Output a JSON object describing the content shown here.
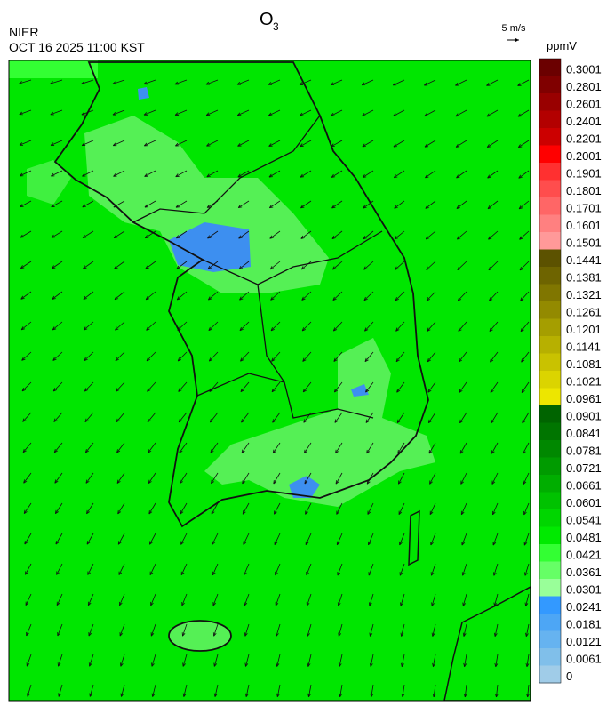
{
  "header": {
    "title": {
      "main": "O",
      "sub": "3"
    },
    "agency": "NIER",
    "datetime": "OCT 16 2025 11:00 KST",
    "wind_scale": "5 m/s"
  },
  "colorbar": {
    "unit": "ppmV",
    "levels": [
      {
        "label": "0.3001",
        "color": "#6b0000"
      },
      {
        "label": "0.2801",
        "color": "#800000"
      },
      {
        "label": "0.2601",
        "color": "#990000"
      },
      {
        "label": "0.2401",
        "color": "#b30000"
      },
      {
        "label": "0.2201",
        "color": "#cc0000"
      },
      {
        "label": "0.2001",
        "color": "#ff0000"
      },
      {
        "label": "0.1901",
        "color": "#ff3030"
      },
      {
        "label": "0.1801",
        "color": "#ff4d4d"
      },
      {
        "label": "0.1701",
        "color": "#ff6666"
      },
      {
        "label": "0.1601",
        "color": "#ff8080"
      },
      {
        "label": "0.1501",
        "color": "#ff9999"
      },
      {
        "label": "0.1441",
        "color": "#5c5200"
      },
      {
        "label": "0.1381",
        "color": "#6e6400"
      },
      {
        "label": "0.1321",
        "color": "#807600"
      },
      {
        "label": "0.1261",
        "color": "#938a00"
      },
      {
        "label": "0.1201",
        "color": "#a59e00"
      },
      {
        "label": "0.1141",
        "color": "#b7b000"
      },
      {
        "label": "0.1081",
        "color": "#c9c200"
      },
      {
        "label": "0.1021",
        "color": "#dbd400"
      },
      {
        "label": "0.0961",
        "color": "#ede600"
      },
      {
        "label": "0.0901",
        "color": "#006400"
      },
      {
        "label": "0.0841",
        "color": "#007500"
      },
      {
        "label": "0.0781",
        "color": "#008800"
      },
      {
        "label": "0.0721",
        "color": "#009b00"
      },
      {
        "label": "0.0661",
        "color": "#00ae00"
      },
      {
        "label": "0.0601",
        "color": "#00c200"
      },
      {
        "label": "0.0541",
        "color": "#00d600"
      },
      {
        "label": "0.0481",
        "color": "#00ea00"
      },
      {
        "label": "0.0421",
        "color": "#33ff33"
      },
      {
        "label": "0.0361",
        "color": "#66ff66"
      },
      {
        "label": "0.0301",
        "color": "#99ff99"
      },
      {
        "label": "0.0241",
        "color": "#3399ff"
      },
      {
        "label": "0.0181",
        "color": "#4da6f5"
      },
      {
        "label": "0.0121",
        "color": "#66b3f0"
      },
      {
        "label": "0.0061",
        "color": "#80bfea"
      },
      {
        "label": "0",
        "color": "#a0cce8"
      }
    ]
  }
}
